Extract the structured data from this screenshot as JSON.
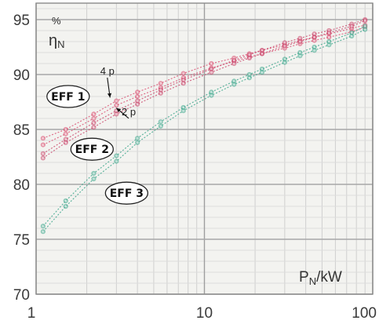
{
  "chart_data": {
    "type": "line",
    "x_scale": "log",
    "xlim": [
      1,
      100
    ],
    "ylim": [
      70,
      96.5
    ],
    "grid": true,
    "xticks": [
      1,
      10,
      100
    ],
    "xtick_labels": [
      "1",
      "10",
      "100"
    ],
    "yticks": [
      70,
      75,
      80,
      85,
      90,
      95
    ],
    "ytick_labels": [
      "70",
      "75",
      "80",
      "85",
      "90",
      "95"
    ],
    "y_unit": "%",
    "ylabel_symbol": "η",
    "ylabel_subscript": "N",
    "xlabel_main": "P",
    "xlabel_subscript": "N",
    "xlabel_unit": "/kW",
    "series": [
      {
        "name": "EFF 1",
        "color": "#d94b6e",
        "x": [
          1.1,
          1.5,
          2.2,
          3,
          4,
          5.5,
          7.5,
          11,
          15,
          18.5,
          22,
          30,
          37,
          45,
          55,
          75,
          90
        ],
        "values": [
          84.2,
          85.0,
          86.4,
          87.6,
          88.4,
          89.2,
          90.1,
          91.0,
          91.5,
          91.9,
          92.2,
          92.7,
          93.1,
          93.4,
          93.7,
          94.2,
          94.5
        ]
      },
      {
        "name": "EFF 1",
        "color": "#d94b6e",
        "x": [
          1.1,
          1.5,
          2.2,
          3,
          4,
          5.5,
          7.5,
          11,
          15,
          18.5,
          22,
          30,
          37,
          45,
          55,
          75,
          90
        ],
        "values": [
          83.6,
          84.6,
          86.0,
          87.2,
          88.0,
          88.8,
          89.7,
          90.6,
          91.2,
          91.6,
          91.9,
          92.4,
          92.8,
          93.1,
          93.4,
          93.9,
          94.3
        ]
      },
      {
        "name": "EFF 2",
        "color": "#c9456a",
        "x": [
          1.1,
          1.5,
          2.2,
          3,
          4,
          5.5,
          7.5,
          11,
          15,
          18.5,
          22,
          30,
          37,
          45,
          55,
          75,
          90
        ],
        "values": [
          82.8,
          84.1,
          85.6,
          86.7,
          87.6,
          88.6,
          89.5,
          90.5,
          91.3,
          91.8,
          92.2,
          92.9,
          93.3,
          93.7,
          94.0,
          94.6,
          95.0
        ]
      },
      {
        "name": "EFF 2",
        "color": "#c9456a",
        "x": [
          1.1,
          1.5,
          2.2,
          3,
          4,
          5.5,
          7.5,
          11,
          15,
          18.5,
          22,
          30,
          37,
          45,
          55,
          75,
          90
        ],
        "values": [
          82.4,
          83.8,
          85.2,
          86.4,
          87.3,
          88.3,
          89.2,
          90.2,
          91.0,
          91.5,
          91.9,
          92.6,
          93.0,
          93.4,
          93.8,
          94.4,
          94.9
        ]
      },
      {
        "name": "EFF 3",
        "color": "#3aa58a",
        "x": [
          1.1,
          1.5,
          2.2,
          3,
          4,
          5.5,
          7.5,
          11,
          15,
          18.5,
          22,
          30,
          37,
          45,
          55,
          75,
          90
        ],
        "values": [
          76.2,
          78.5,
          81.0,
          82.6,
          84.2,
          85.7,
          87.0,
          88.4,
          89.4,
          90.0,
          90.5,
          91.4,
          92.0,
          92.5,
          93.0,
          93.8,
          94.4
        ]
      },
      {
        "name": "EFF 3",
        "color": "#3aa58a",
        "x": [
          1.1,
          1.5,
          2.2,
          3,
          4,
          5.5,
          7.5,
          11,
          15,
          18.5,
          22,
          30,
          37,
          45,
          55,
          75,
          90
        ],
        "values": [
          75.7,
          78.0,
          80.5,
          82.1,
          83.8,
          85.3,
          86.7,
          88.1,
          89.1,
          89.7,
          90.2,
          91.1,
          91.7,
          92.2,
          92.7,
          93.5,
          94.1
        ]
      }
    ],
    "badges": [
      {
        "text": "EFF 1",
        "x": 1.55,
        "y": 88.0
      },
      {
        "text": "EFF 2",
        "x": 2.15,
        "y": 83.2
      },
      {
        "text": "EFF 3",
        "x": 3.45,
        "y": 79.2
      }
    ],
    "annotations": [
      {
        "text": "4 p",
        "label_x": 2.65,
        "label_y": 90.0,
        "arrow_to_x": 2.75,
        "arrow_to_y": 87.9
      },
      {
        "text": "2 p",
        "label_x": 3.55,
        "label_y": 86.3,
        "arrow_to_x": 3.0,
        "arrow_to_y": 86.95
      }
    ]
  }
}
